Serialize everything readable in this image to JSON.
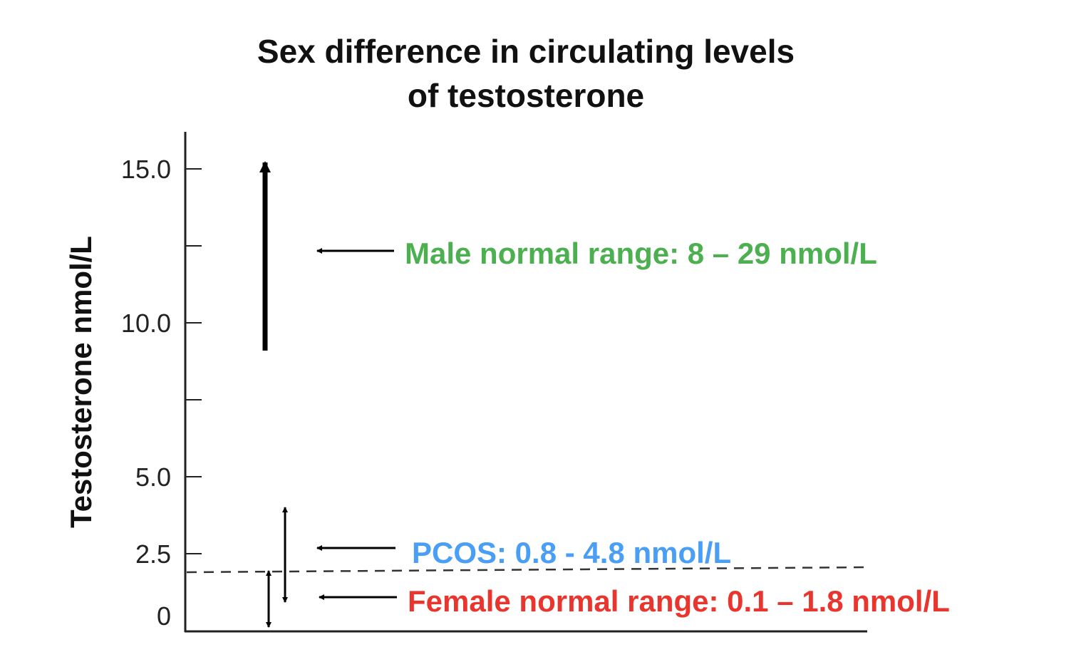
{
  "chart_data": {
    "type": "range-annotation",
    "title_line1": "Sex difference in circulating levels",
    "title_line2": "of testosterone",
    "ylabel": "Testosterone nmol/L",
    "ylim": [
      0,
      16
    ],
    "y_ticks": [
      0,
      2.5,
      5.0,
      7.5,
      10.0,
      12.5,
      15.0
    ],
    "y_tick_labels": [
      "0",
      "2.5",
      "5.0",
      "",
      "10.0",
      "",
      "15.0"
    ],
    "grid": false,
    "threshold_dashed_line": 1.9,
    "annotations": [
      {
        "label": "Male normal range: 8 – 29 nmol/L",
        "color": "#4cb050",
        "low": 8,
        "high": 29
      },
      {
        "label": "PCOS: 0.8 - 4.8 nmol/L",
        "color": "#4a9ff5",
        "low": 0.8,
        "high": 4.8
      },
      {
        "label": "Female normal range: 0.1 – 1.8 nmol/L",
        "color": "#e8352e",
        "low": 0.1,
        "high": 1.8
      }
    ]
  }
}
